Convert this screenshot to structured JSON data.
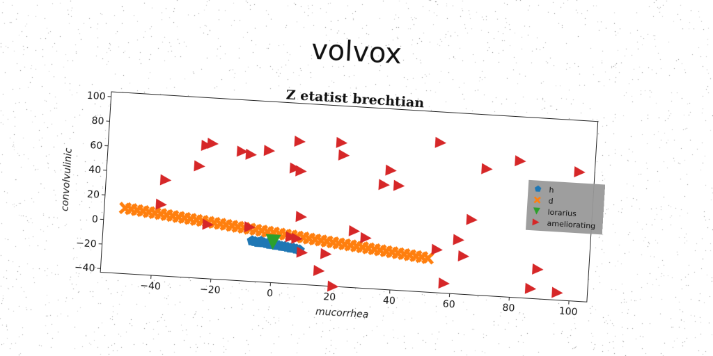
{
  "figure": {
    "suptitle": "volvox"
  },
  "chart_data": {
    "type": "scatter",
    "title": "Z etatist brechtian",
    "xlabel": "mucorrhea",
    "ylabel": "convolvulinic",
    "xlim": [
      -57,
      106
    ],
    "ylim": [
      -43,
      104
    ],
    "xticks": [
      -40,
      -20,
      0,
      20,
      40,
      60,
      80,
      100
    ],
    "yticks": [
      -40,
      -20,
      0,
      20,
      40,
      60,
      80,
      100
    ],
    "grid": false,
    "legend": {
      "placement": "center-right",
      "background": "#999999"
    },
    "series": [
      {
        "name": "h",
        "marker": "pentagon",
        "color": "#1f77b4",
        "x": [
          -7,
          -6,
          -5,
          -4,
          -3,
          -2,
          -1,
          0,
          1,
          2,
          3,
          4,
          5,
          6,
          7,
          8,
          9
        ],
        "y": [
          -10,
          -10.5,
          -11,
          -10,
          -11,
          -11.5,
          -12,
          -12,
          -12.5,
          -12.5,
          -13,
          -13,
          -13.5,
          -14,
          -14,
          -14.5,
          -15
        ]
      },
      {
        "name": "d",
        "marker": "x",
        "color": "#ff7f0e",
        "x": [
          -50,
          -48,
          -46,
          -44,
          -42,
          -40,
          -38,
          -36,
          -34,
          -32,
          -30,
          -28,
          -26,
          -24,
          -22,
          -20,
          -18,
          -16,
          -14,
          -12,
          -10,
          -8,
          -6,
          -4,
          -2,
          0,
          2,
          4,
          6,
          8,
          10,
          12,
          14,
          16,
          18,
          20,
          22,
          24,
          26,
          28,
          30,
          32,
          34,
          36,
          38,
          40,
          42,
          44,
          46,
          48,
          50,
          52
        ],
        "y": [
          10.2,
          9.7,
          9.2,
          8.7,
          8.2,
          7.7,
          7.2,
          6.7,
          6.2,
          5.7,
          5.2,
          4.7,
          4.2,
          3.7,
          3.2,
          2.7,
          2.2,
          1.7,
          1.2,
          0.7,
          0.2,
          -0.3,
          -0.8,
          -1.3,
          -1.8,
          -2.3,
          -2.8,
          -3.3,
          -3.8,
          -4.3,
          -4.8,
          -5.3,
          -5.8,
          -6.3,
          -6.8,
          -7.3,
          -7.8,
          -8.3,
          -8.8,
          -9.3,
          -9.8,
          -10.3,
          -10.8,
          -11.3,
          -11.8,
          -12.3,
          -12.8,
          -13.3,
          -13.8,
          -14.3,
          -14.8,
          -15.3
        ]
      },
      {
        "name": "lorarius",
        "marker": "triangle-down",
        "color": "#2ca02c",
        "x": [
          0
        ],
        "y": [
          -10
        ]
      },
      {
        "name": "ameliorating",
        "marker": "triangle-right",
        "color": "#d62728",
        "x": [
          -37,
          -38,
          -26,
          -24,
          -22,
          -12,
          -9,
          -3,
          6,
          7,
          8,
          9,
          21,
          22,
          10,
          -22,
          -8,
          6,
          8,
          18,
          27,
          31,
          16,
          21,
          36,
          38,
          41,
          39,
          55,
          54,
          58,
          62,
          64,
          66,
          66,
          70,
          81,
          87,
          89,
          96,
          101
        ],
        "y": [
          35,
          15,
          48,
          65,
          67,
          62,
          60,
          64,
          51,
          73,
          49,
          12,
          74,
          64,
          -17,
          1,
          1,
          -5,
          -6,
          -17,
          3,
          -2,
          -31,
          -43,
          42,
          54,
          42,
          -52,
          -8,
          79,
          -35,
          1,
          -12,
          18,
          -52,
          60,
          68,
          -35,
          -19,
          -37,
          62
        ]
      }
    ]
  }
}
